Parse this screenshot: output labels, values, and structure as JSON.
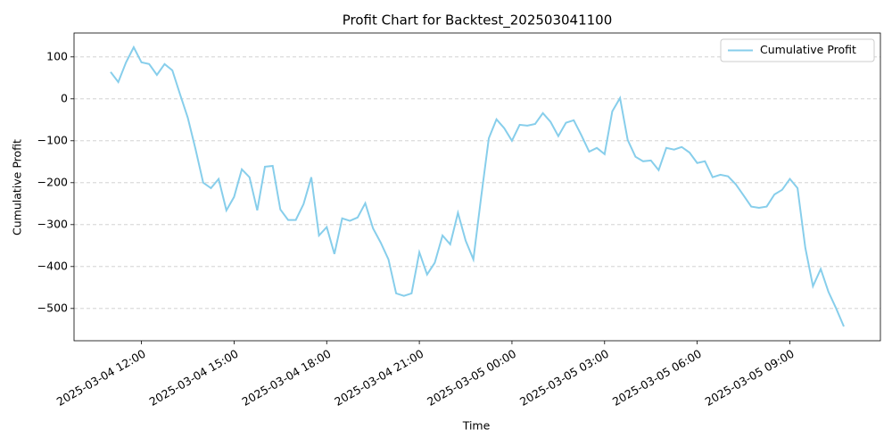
{
  "chart_data": {
    "type": "line",
    "title": "Profit Chart for Backtest_202503041100",
    "x_label": "Time",
    "y_label": "Cumulative Profit",
    "x": [
      "2025-03-04 11:00",
      "2025-03-04 11:15",
      "2025-03-04 11:30",
      "2025-03-04 11:45",
      "2025-03-04 12:00",
      "2025-03-04 12:15",
      "2025-03-04 12:30",
      "2025-03-04 12:45",
      "2025-03-04 13:00",
      "2025-03-04 13:15",
      "2025-03-04 13:30",
      "2025-03-04 13:45",
      "2025-03-04 14:00",
      "2025-03-04 14:15",
      "2025-03-04 14:30",
      "2025-03-04 14:45",
      "2025-03-04 15:00",
      "2025-03-04 15:15",
      "2025-03-04 15:30",
      "2025-03-04 15:45",
      "2025-03-04 16:00",
      "2025-03-04 16:15",
      "2025-03-04 16:30",
      "2025-03-04 16:45",
      "2025-03-04 17:00",
      "2025-03-04 17:15",
      "2025-03-04 17:30",
      "2025-03-04 17:45",
      "2025-03-04 18:00",
      "2025-03-04 18:15",
      "2025-03-04 18:30",
      "2025-03-04 18:45",
      "2025-03-04 19:00",
      "2025-03-04 19:15",
      "2025-03-04 19:30",
      "2025-03-04 19:45",
      "2025-03-04 20:00",
      "2025-03-04 20:15",
      "2025-03-04 20:30",
      "2025-03-04 20:45",
      "2025-03-04 21:00",
      "2025-03-04 21:15",
      "2025-03-04 21:30",
      "2025-03-04 21:45",
      "2025-03-04 22:00",
      "2025-03-04 22:15",
      "2025-03-04 22:30",
      "2025-03-04 22:45",
      "2025-03-04 23:00",
      "2025-03-04 23:15",
      "2025-03-04 23:30",
      "2025-03-04 23:45",
      "2025-03-05 00:00",
      "2025-03-05 00:15",
      "2025-03-05 00:30",
      "2025-03-05 00:45",
      "2025-03-05 01:00",
      "2025-03-05 01:15",
      "2025-03-05 01:30",
      "2025-03-05 01:45",
      "2025-03-05 02:00",
      "2025-03-05 02:15",
      "2025-03-05 02:30",
      "2025-03-05 02:45",
      "2025-03-05 03:00",
      "2025-03-05 03:15",
      "2025-03-05 03:30",
      "2025-03-05 03:45",
      "2025-03-05 04:00",
      "2025-03-05 04:15",
      "2025-03-05 04:30",
      "2025-03-05 04:45",
      "2025-03-05 05:00",
      "2025-03-05 05:15",
      "2025-03-05 05:30",
      "2025-03-05 05:45",
      "2025-03-05 06:00",
      "2025-03-05 06:15",
      "2025-03-05 06:30",
      "2025-03-05 06:45",
      "2025-03-05 07:00",
      "2025-03-05 07:15",
      "2025-03-05 07:30",
      "2025-03-05 07:45",
      "2025-03-05 08:00",
      "2025-03-05 08:15",
      "2025-03-05 08:30",
      "2025-03-05 08:45",
      "2025-03-05 09:00",
      "2025-03-05 09:15",
      "2025-03-05 09:30",
      "2025-03-05 09:45",
      "2025-03-05 10:00",
      "2025-03-05 10:15",
      "2025-03-05 10:30",
      "2025-03-05 10:45"
    ],
    "series": [
      {
        "name": "Cumulative Profit",
        "color": "#87ceeb",
        "values": [
          64,
          40,
          87,
          123,
          87,
          83,
          57,
          83,
          68,
          11,
          -45,
          -119,
          -200,
          -213,
          -191,
          -266,
          -234,
          -168,
          -187,
          -266,
          -162,
          -160,
          -264,
          -289,
          -289,
          -251,
          -187,
          -326,
          -306,
          -370,
          -285,
          -291,
          -283,
          -249,
          -309,
          -343,
          -383,
          -464,
          -470,
          -464,
          -366,
          -419,
          -391,
          -326,
          -347,
          -272,
          -338,
          -383,
          -236,
          -94,
          -49,
          -70,
          -100,
          -62,
          -64,
          -60,
          -34,
          -55,
          -89,
          -57,
          -51,
          -87,
          -126,
          -117,
          -132,
          -30,
          2,
          -98,
          -138,
          -149,
          -147,
          -170,
          -117,
          -121,
          -115,
          -128,
          -153,
          -149,
          -187,
          -181,
          -185,
          -204,
          -230,
          -257,
          -260,
          -257,
          -228,
          -217,
          -191,
          -213,
          -355,
          -447,
          -406,
          -460,
          -500,
          -543
        ]
      }
    ],
    "xlim": [
      "2025-03-04 09:49",
      "2025-03-05 11:56"
    ],
    "xticks": [
      "2025-03-04 12:00",
      "2025-03-04 15:00",
      "2025-03-04 18:00",
      "2025-03-04 21:00",
      "2025-03-05 00:00",
      "2025-03-05 03:00",
      "2025-03-05 06:00",
      "2025-03-05 09:00"
    ],
    "ylim": [
      -577,
      157
    ],
    "yticks": [
      {
        "value": -500,
        "label": "−500"
      },
      {
        "value": -400,
        "label": "−400"
      },
      {
        "value": -300,
        "label": "−300"
      },
      {
        "value": -200,
        "label": "−200"
      },
      {
        "value": -100,
        "label": "−100"
      },
      0,
      100
    ],
    "grid": "y",
    "legend": "upper right"
  }
}
